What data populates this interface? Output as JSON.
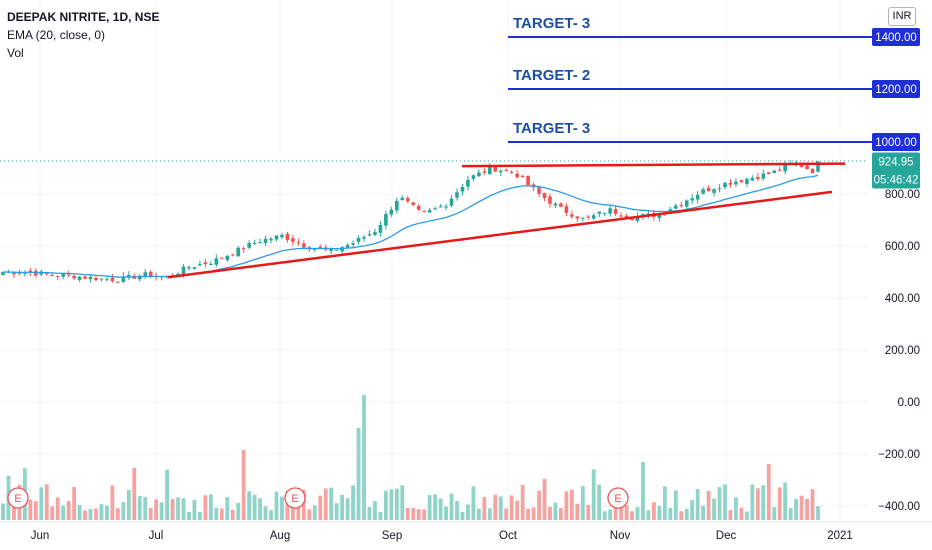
{
  "legend": {
    "title": "DEEPAK NITRITE, 1D, NSE",
    "ema": "EMA (20, close, 0)",
    "vol": "Vol"
  },
  "currency": "INR",
  "colors": {
    "up": "#26a69a",
    "down": "#ef5350",
    "vol_up": "#8fd3c9",
    "vol_down": "#f5a3a1",
    "ema": "#2f9be6",
    "trendline": "#e61919",
    "target_line": "#1f2fd6",
    "target_text": "#1a4fa3",
    "price_tag": "#26a69a"
  },
  "targets": [
    {
      "label": "TARGET- 3",
      "price": 1400,
      "tag": "1400.00"
    },
    {
      "label": "TARGET- 2",
      "price": 1200,
      "tag": "1200.00"
    },
    {
      "label": "TARGET- 3",
      "price": 1000,
      "tag": "1000.00"
    }
  ],
  "price_tags": {
    "last_price": "924.95",
    "countdown": "05:46:42"
  },
  "chart_data": {
    "type": "candlestick",
    "y_axis": {
      "ticks": [
        -400,
        -200,
        0,
        200,
        400,
        600,
        800
      ],
      "tick_labels": [
        "−400.00",
        "−200.00",
        "0.00",
        "200.00",
        "400.00",
        "600.00",
        "800.00"
      ],
      "range": [
        -420,
        1550
      ]
    },
    "x_axis": {
      "labels": [
        "Jun",
        "Jul",
        "Aug",
        "Sep",
        "Oct",
        "Nov",
        "Dec",
        "2021"
      ]
    },
    "last_price": 924.95,
    "ema_period": 20,
    "earnings_markers": [
      "E",
      "E",
      "E"
    ],
    "trendlines": [
      {
        "name": "support",
        "from_price": 480,
        "to_price": 808,
        "from_label": "Jul",
        "to_label": "Dec"
      },
      {
        "name": "resistance",
        "from_price": 907,
        "to_price": 917,
        "from_label": "Sep",
        "to_label": "Dec"
      }
    ],
    "price_keypoints": [
      500,
      500,
      490,
      485,
      475,
      470,
      490,
      480,
      520,
      540,
      580,
      620,
      640,
      600,
      580,
      610,
      660,
      790,
      720,
      760,
      860,
      900,
      880,
      800,
      740,
      700,
      740,
      710,
      720,
      760,
      810,
      840,
      860,
      880,
      920,
      880
    ],
    "volume_note": "per-session volume bars, scale not printed"
  }
}
